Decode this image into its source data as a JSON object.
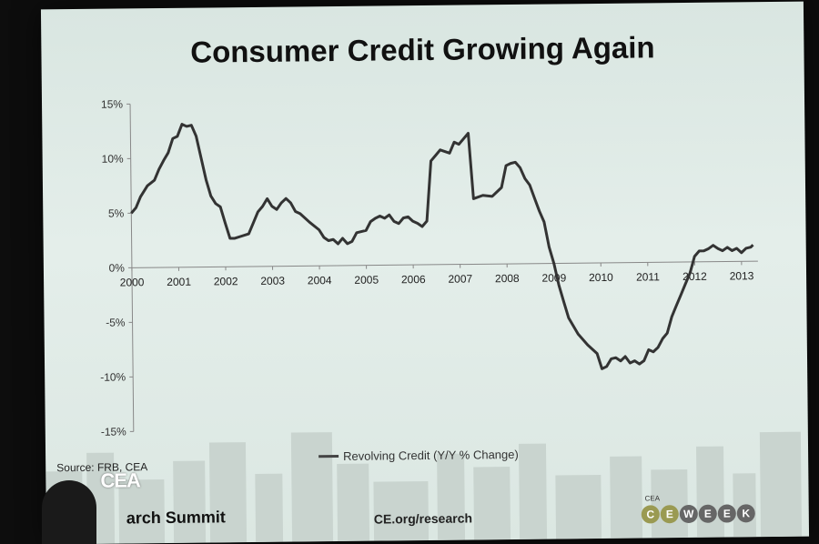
{
  "slide": {
    "title": "Consumer Credit Growing Again",
    "source": "Source: FRB, CEA",
    "footer_logo": "CEA",
    "footer_summit": "arch Summit",
    "footer_url": "CE.org/research",
    "week_small": "CEA",
    "week_letters": [
      "C",
      "E",
      "W",
      "E",
      "E",
      "K"
    ]
  },
  "chart_data": {
    "type": "line",
    "title": "Consumer Credit Growing Again",
    "xlabel": "",
    "ylabel": "",
    "xlim": [
      2000,
      2013.35
    ],
    "ylim": [
      -15,
      15
    ],
    "yticks": [
      15,
      10,
      5,
      0,
      -5,
      -10,
      -15
    ],
    "ytick_labels": [
      "15%",
      "10%",
      "5%",
      "0%",
      "-5%",
      "-10%",
      "-15%"
    ],
    "xticks": [
      2000,
      2001,
      2002,
      2003,
      2004,
      2005,
      2006,
      2007,
      2008,
      2009,
      2010,
      2011,
      2012,
      2013
    ],
    "xtick_labels": [
      "2000",
      "2001",
      "2002",
      "2003",
      "2004",
      "2005",
      "2006",
      "2007",
      "2008",
      "2009",
      "2010",
      "2011",
      "2012",
      "2013"
    ],
    "grid": false,
    "legend_position": "bottom-center",
    "series": [
      {
        "name": "Revolving Credit (Y/Y % Change)",
        "color": "#333333",
        "x": [
          2000.0,
          2000.1,
          2000.2,
          2000.35,
          2000.5,
          2000.6,
          2000.7,
          2000.8,
          2000.9,
          2001.0,
          2001.1,
          2001.2,
          2001.3,
          2001.4,
          2001.5,
          2001.6,
          2001.7,
          2001.8,
          2001.9,
          2002.0,
          2002.1,
          2002.2,
          2002.35,
          2002.5,
          2002.6,
          2002.7,
          2002.8,
          2002.9,
          2003.0,
          2003.1,
          2003.2,
          2003.3,
          2003.4,
          2003.5,
          2003.6,
          2003.8,
          2004.0,
          2004.1,
          2004.2,
          2004.3,
          2004.4,
          2004.5,
          2004.6,
          2004.7,
          2004.8,
          2005.0,
          2005.1,
          2005.2,
          2005.3,
          2005.4,
          2005.5,
          2005.6,
          2005.7,
          2005.8,
          2005.9,
          2006.0,
          2006.1,
          2006.2,
          2006.3,
          2006.4,
          2006.5,
          2006.6,
          2006.8,
          2006.9,
          2007.0,
          2007.1,
          2007.2,
          2007.3,
          2007.5,
          2007.7,
          2007.9,
          2008.0,
          2008.1,
          2008.2,
          2008.3,
          2008.4,
          2008.5,
          2008.6,
          2008.7,
          2008.8,
          2008.9,
          2009.0,
          2009.1,
          2009.2,
          2009.3,
          2009.5,
          2009.7,
          2009.9,
          2010.0,
          2010.1,
          2010.2,
          2010.3,
          2010.4,
          2010.5,
          2010.6,
          2010.7,
          2010.8,
          2010.9,
          2011.0,
          2011.1,
          2011.2,
          2011.3,
          2011.4,
          2011.5,
          2011.6,
          2011.7,
          2011.8,
          2011.9,
          2012.0,
          2012.1,
          2012.2,
          2012.3,
          2012.4,
          2012.5,
          2012.6,
          2012.7,
          2012.8,
          2012.9,
          2013.0,
          2013.1,
          2013.2,
          2013.25
        ],
        "y": [
          5.0,
          5.5,
          6.5,
          7.5,
          8.0,
          9.0,
          9.8,
          10.5,
          11.8,
          12.0,
          13.1,
          12.9,
          13.0,
          12.0,
          10.0,
          8.0,
          6.5,
          5.8,
          5.5,
          4.0,
          2.6,
          2.6,
          2.8,
          3.0,
          4.0,
          5.0,
          5.5,
          6.2,
          5.5,
          5.2,
          5.8,
          6.2,
          5.8,
          5.0,
          4.8,
          4.0,
          3.3,
          2.6,
          2.3,
          2.4,
          2.0,
          2.5,
          2.0,
          2.2,
          3.0,
          3.2,
          4.0,
          4.3,
          4.5,
          4.3,
          4.6,
          4.0,
          3.8,
          4.3,
          4.4,
          4.0,
          3.8,
          3.5,
          4.0,
          9.5,
          10.0,
          10.5,
          10.2,
          11.2,
          11.0,
          11.5,
          12.0,
          6.0,
          6.3,
          6.2,
          7.0,
          9.0,
          9.2,
          9.3,
          8.8,
          7.8,
          7.2,
          6.0,
          4.8,
          3.8,
          1.5,
          0.0,
          -2.0,
          -3.5,
          -5.0,
          -6.5,
          -7.5,
          -8.3,
          -9.7,
          -9.5,
          -8.8,
          -8.7,
          -9.0,
          -8.6,
          -9.2,
          -9.0,
          -9.3,
          -9.0,
          -8.0,
          -8.2,
          -7.8,
          -7.0,
          -6.5,
          -5.0,
          -4.0,
          -3.0,
          -2.0,
          -1.0,
          0.5,
          1.0,
          1.0,
          1.2,
          1.5,
          1.2,
          1.0,
          1.3,
          1.0,
          1.2,
          0.8,
          1.2,
          1.3,
          1.5
        ]
      }
    ]
  }
}
